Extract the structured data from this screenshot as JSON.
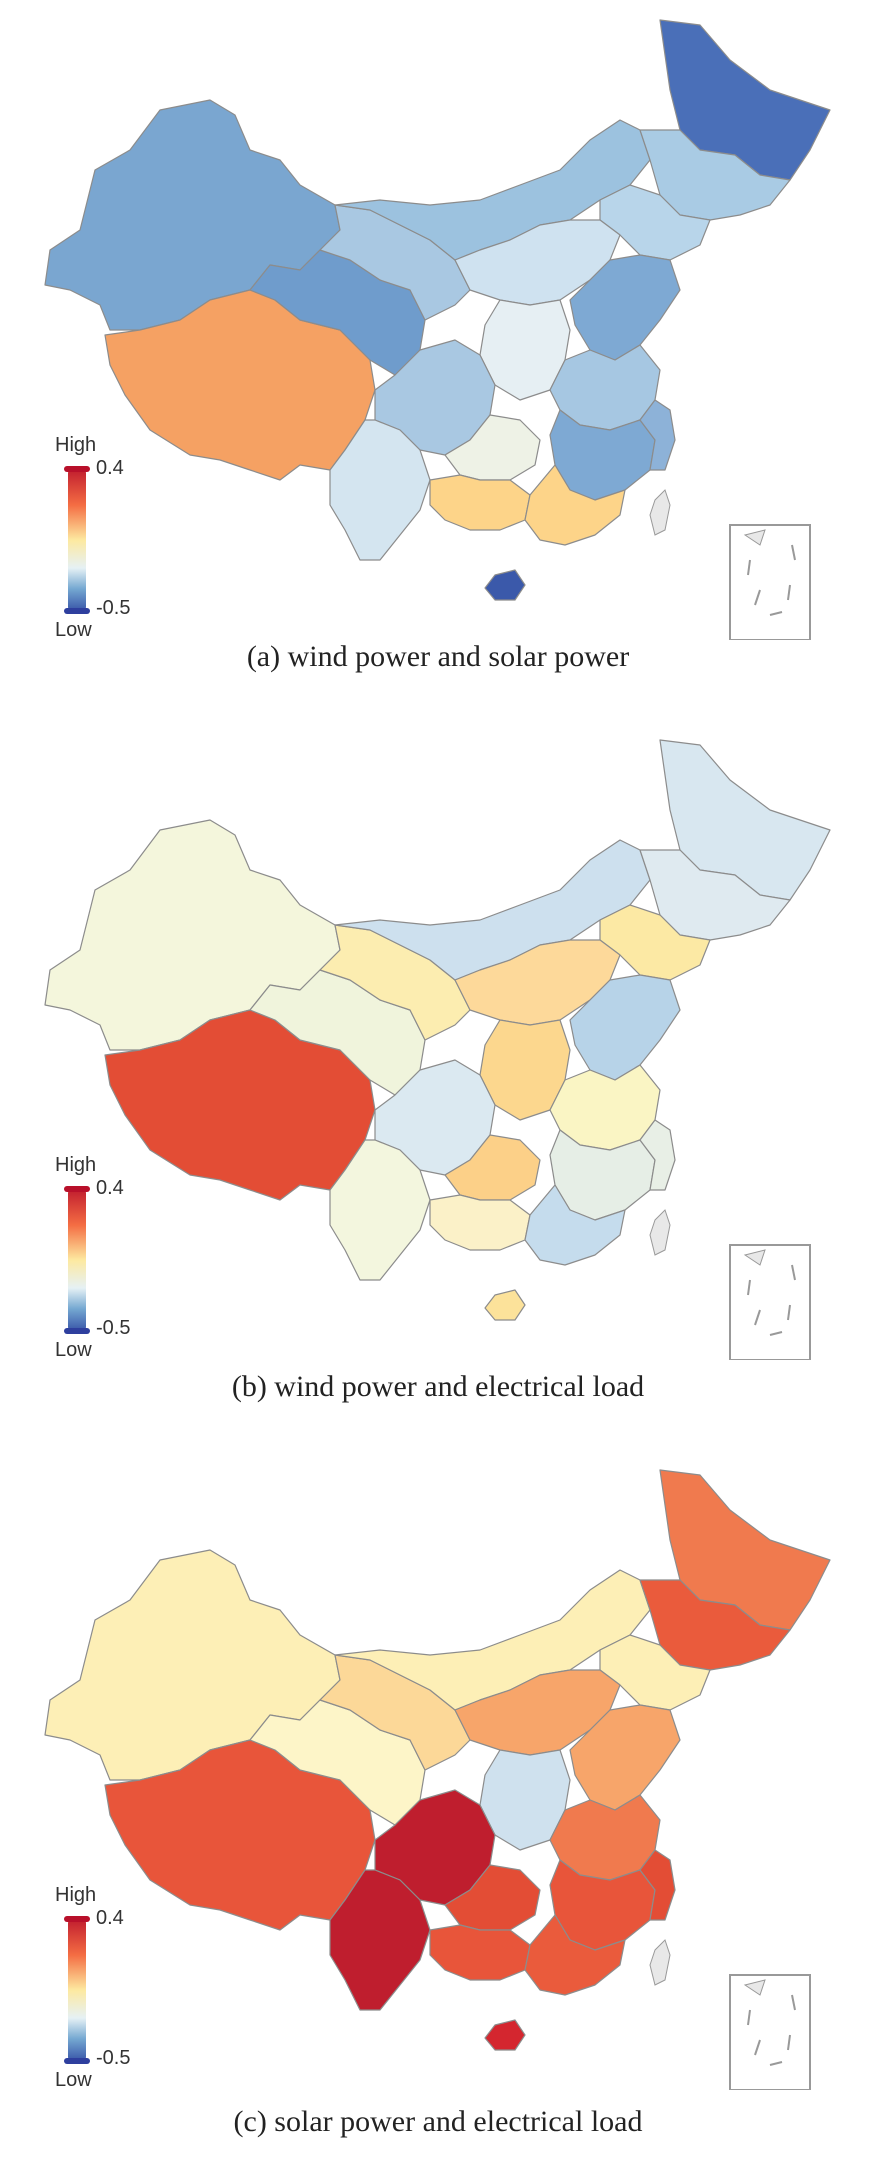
{
  "panels": [
    {
      "id": "a",
      "caption": "(a) wind power and solar power",
      "legend": {
        "high_label": "High",
        "low_label": "Low",
        "max": "0.4",
        "min": "-0.5"
      },
      "colors": {
        "northwest": "#7aa6d0",
        "tibet": "#f5a163",
        "qinghai": "#6f9ccc",
        "gansu": "#a9c8e2",
        "inner_mongolia": "#9cc2df",
        "northeast_top": "#4a6fb8",
        "northeast_mid": "#a9cbe4",
        "northeast_low": "#b8d5ea",
        "north_center": "#cfe2f0",
        "center_mid": "#e6eff3",
        "east_coast": "#7ea9d3",
        "sichuan": "#a9c8e2",
        "central": "#a6c7e2",
        "south_central": "#7ea9d3",
        "southwest": "#d4e5f0",
        "guangxi": "#fdd489",
        "guangdong": "#fdd489",
        "hainan": "#3b59aa",
        "guizhou": "#eef2e6",
        "east_south": "#8db2d8"
      }
    },
    {
      "id": "b",
      "caption": "(b) wind power and electrical load",
      "legend": {
        "high_label": "High",
        "low_label": "Low",
        "max": "0.4",
        "min": "-0.5"
      },
      "colors": {
        "northwest": "#f4f6dc",
        "tibet": "#e34d35",
        "qinghai": "#f0f4dc",
        "gansu": "#fcedb0",
        "inner_mongolia": "#cde0ee",
        "northeast_top": "#d8e7f0",
        "northeast_mid": "#dfeaf0",
        "northeast_low": "#fce9a4",
        "north_center": "#fdd99a",
        "center_mid": "#fcd78e",
        "east_coast": "#b7d3e8",
        "sichuan": "#dbe9f1",
        "central": "#faf5c4",
        "south_central": "#e6eee6",
        "southwest": "#f3f6de",
        "guangxi": "#fbf1c8",
        "guangdong": "#c5dced",
        "hainan": "#fce29a",
        "guizhou": "#fcd088",
        "east_south": "#e8efe6"
      }
    },
    {
      "id": "c",
      "caption": "(c) solar power and electrical load",
      "legend": {
        "high_label": "High",
        "low_label": "Low",
        "max": "0.4",
        "min": "-0.5"
      },
      "colors": {
        "northwest": "#fdefb6",
        "tibet": "#e8553a",
        "qinghai": "#fdf5c8",
        "gansu": "#fcd898",
        "inner_mongolia": "#fdefb6",
        "northeast_top": "#f07a4e",
        "northeast_mid": "#ea5b3c",
        "northeast_low": "#fdefb6",
        "north_center": "#f7a56a",
        "center_mid": "#cfe1ee",
        "east_coast": "#f7a56a",
        "sichuan": "#bf1e2e",
        "central": "#f07a4e",
        "south_central": "#e8553a",
        "southwest": "#bf1e2e",
        "guangxi": "#e8553a",
        "guangdong": "#ea5b3c",
        "hainan": "#d4262f",
        "guizhou": "#e34d35",
        "east_south": "#e34d35"
      }
    }
  ]
}
